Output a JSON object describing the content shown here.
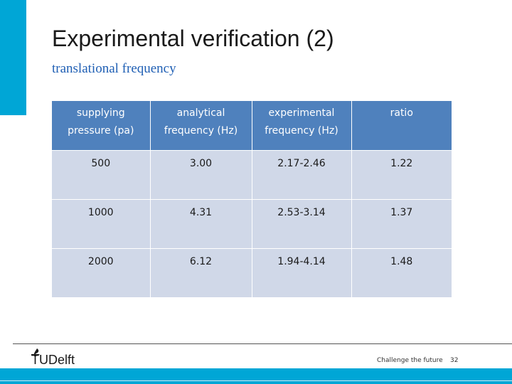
{
  "slide": {
    "title": "Experimental verification (2)",
    "subtitle": "translational frequency",
    "accent_color": "#00a6d6"
  },
  "table": {
    "header_color": "#4f81bd",
    "row_color": "#d0d8e8",
    "headers": [
      [
        "supplying",
        "pressure (pa)"
      ],
      [
        "analytical",
        "frequency (Hz)"
      ],
      [
        "experimental",
        "frequency (Hz)"
      ],
      [
        "ratio"
      ]
    ],
    "rows": [
      [
        "500",
        "3.00",
        "2.17-2.46",
        "1.22"
      ],
      [
        "1000",
        "4.31",
        "2.53-3.14",
        "1.37"
      ],
      [
        "2000",
        "6.12",
        "1.94-4.14",
        "1.48"
      ]
    ]
  },
  "footer": {
    "logo_text": "TUDelft",
    "logo_icon": "flame-icon",
    "tagline": "Challenge the future",
    "page_number": "32"
  }
}
